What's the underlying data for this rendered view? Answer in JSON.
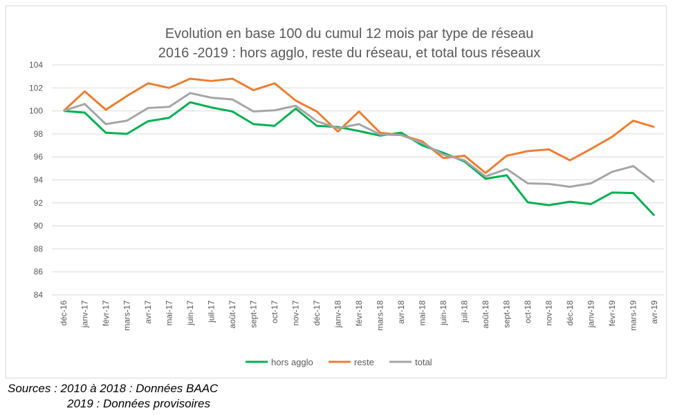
{
  "chart_data": {
    "type": "line",
    "title": [
      "Evolution en base 100 du cumul 12 mois par type de réseau",
      "2016 -2019 : hors agglo, reste du réseau, et total tous réseaux"
    ],
    "xlabel": "",
    "ylabel": "",
    "ylim": [
      84,
      104
    ],
    "yticks": [
      84,
      86,
      88,
      90,
      92,
      94,
      96,
      98,
      100,
      102,
      104
    ],
    "grid": true,
    "legend": "bottom",
    "categories": [
      "déc-16",
      "janv-17",
      "févr-17",
      "mars-17",
      "avr-17",
      "mai-17",
      "juin-17",
      "juil-17",
      "août-17",
      "sept-17",
      "oct-17",
      "nov-17",
      "déc-17",
      "janv-18",
      "févr-18",
      "mars-18",
      "avr-18",
      "mai-18",
      "juin-18",
      "juil-18",
      "août-18",
      "sept-18",
      "oct-18",
      "nov-18",
      "déc-18",
      "janv-19",
      "févr-19",
      "mars-19",
      "avr-19"
    ],
    "series": [
      {
        "name": "hors agglo",
        "color": "#00b050",
        "values": [
          100,
          99.85,
          98.1,
          98.0,
          99.1,
          99.4,
          100.75,
          100.3,
          99.95,
          98.85,
          98.7,
          100.2,
          98.7,
          98.6,
          98.25,
          97.85,
          98.1,
          97.0,
          96.35,
          95.6,
          94.1,
          94.4,
          92.05,
          91.8,
          92.1,
          91.9,
          92.9,
          92.85,
          90.9
        ]
      },
      {
        "name": "reste",
        "color": "#ed7d31",
        "values": [
          100,
          101.7,
          100.1,
          101.3,
          102.4,
          102.0,
          102.8,
          102.6,
          102.8,
          101.8,
          102.4,
          100.9,
          99.95,
          98.2,
          99.95,
          98.1,
          97.9,
          97.35,
          95.9,
          96.1,
          94.6,
          96.1,
          96.5,
          96.65,
          95.7,
          96.7,
          97.75,
          99.15,
          98.6
        ]
      },
      {
        "name": "total",
        "color": "#a5a5a5",
        "values": [
          100,
          100.6,
          98.85,
          99.15,
          100.25,
          100.35,
          101.55,
          101.15,
          101.0,
          99.95,
          100.05,
          100.45,
          99.1,
          98.5,
          98.85,
          97.95,
          97.9,
          97.2,
          96.2,
          95.7,
          94.3,
          94.95,
          93.7,
          93.65,
          93.4,
          93.7,
          94.7,
          95.2,
          93.8
        ]
      }
    ]
  },
  "sources": {
    "line1": "Sources : 2010 à 2018 : Données BAAC",
    "line2": "2019 : Données provisoires"
  }
}
